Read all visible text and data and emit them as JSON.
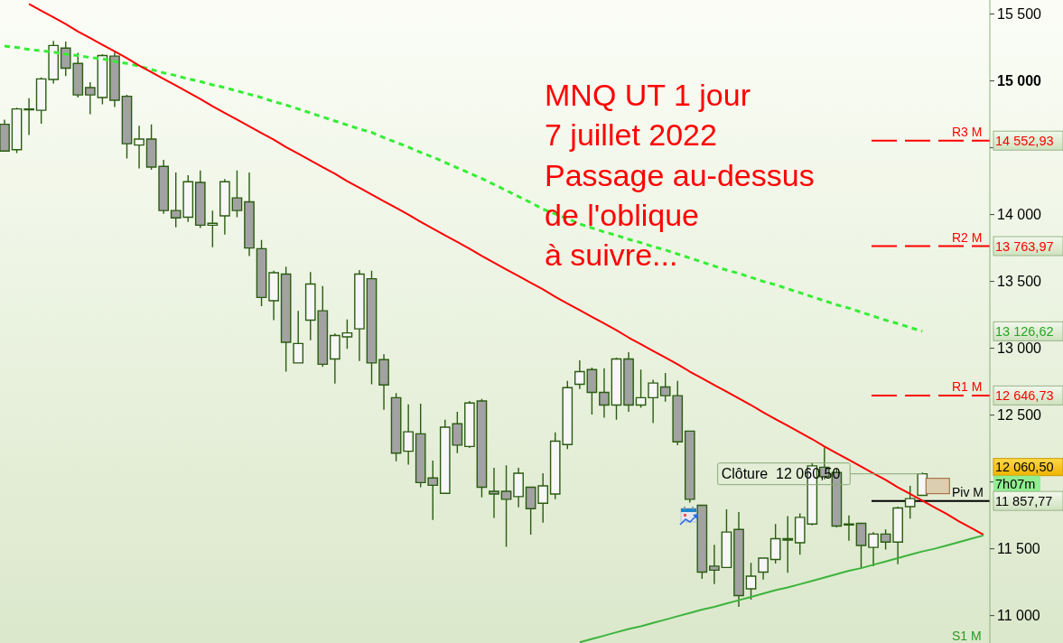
{
  "chart_data": {
    "type": "candlestick",
    "title": "MNQ UT 1 jour\n7 juillet 2022\nPassage au-dessus\nde l'oblique\nà suivre...",
    "categories": [
      null,
      null,
      null,
      null,
      null,
      null,
      null,
      null,
      null,
      null,
      null,
      null,
      null,
      null,
      null,
      null,
      null,
      null,
      null,
      null,
      null,
      null,
      null,
      null,
      null,
      null,
      null,
      null,
      null,
      null,
      null,
      null,
      null,
      null,
      null,
      null,
      null,
      null,
      null,
      null,
      null,
      null,
      null,
      null,
      null,
      null,
      null,
      null,
      null,
      null,
      null,
      null,
      null,
      null,
      null,
      null,
      null,
      null,
      null,
      null,
      null,
      null,
      null,
      null,
      null,
      null,
      null,
      null,
      null,
      null,
      null,
      null,
      null,
      null,
      null,
      null,
      null,
      null,
      null,
      null,
      null
    ],
    "ohlc": [
      [
        14675,
        14710,
        14470,
        14475
      ],
      [
        14485,
        14800,
        14460,
        14790
      ],
      [
        14790,
        14870,
        14595,
        14790
      ],
      [
        14780,
        15025,
        14680,
        15015
      ],
      [
        15010,
        15300,
        14980,
        15265
      ],
      [
        15245,
        15295,
        15035,
        15095
      ],
      [
        15130,
        15210,
        14875,
        14895
      ],
      [
        14950,
        14990,
        14750,
        14895
      ],
      [
        14875,
        15200,
        14825,
        15190
      ],
      [
        15185,
        15215,
        14805,
        14855
      ],
      [
        14885,
        14895,
        14420,
        14530
      ],
      [
        14520,
        14665,
        14345,
        14565
      ],
      [
        14565,
        14675,
        14335,
        14355
      ],
      [
        14360,
        14410,
        14005,
        14030
      ],
      [
        14030,
        14315,
        13905,
        13975
      ],
      [
        13980,
        14295,
        13945,
        14245
      ],
      [
        14240,
        14330,
        13900,
        13920
      ],
      [
        13920,
        14030,
        13755,
        13935
      ],
      [
        13990,
        14265,
        13850,
        14245
      ],
      [
        14125,
        14330,
        13980,
        14030
      ],
      [
        14095,
        14315,
        13690,
        13750
      ],
      [
        13745,
        13810,
        13315,
        13380
      ],
      [
        13355,
        13580,
        13210,
        13565
      ],
      [
        13555,
        13610,
        12825,
        13045
      ],
      [
        12890,
        13280,
        12890,
        13035
      ],
      [
        13210,
        13570,
        13060,
        13480
      ],
      [
        13280,
        13465,
        12860,
        12880
      ],
      [
        12920,
        13110,
        12735,
        13095
      ],
      [
        13085,
        13215,
        12995,
        13115
      ],
      [
        13145,
        13585,
        12905,
        13555
      ],
      [
        13520,
        13580,
        12730,
        12890
      ],
      [
        12915,
        12955,
        12540,
        12725
      ],
      [
        12630,
        12665,
        12155,
        12215
      ],
      [
        12230,
        12580,
        12130,
        12375
      ],
      [
        12360,
        12585,
        11960,
        11995
      ],
      [
        12030,
        12160,
        11715,
        11975
      ],
      [
        11915,
        12465,
        11915,
        12410
      ],
      [
        12435,
        12525,
        12215,
        12275
      ],
      [
        12265,
        12605,
        12255,
        12590
      ],
      [
        12605,
        12620,
        11885,
        11960
      ],
      [
        11930,
        12105,
        11730,
        11910
      ],
      [
        11930,
        12125,
        11515,
        11870
      ],
      [
        11890,
        12105,
        11810,
        12065
      ],
      [
        11960,
        11960,
        11605,
        11800
      ],
      [
        11840,
        12065,
        11695,
        11970
      ],
      [
        11910,
        12370,
        11870,
        12305
      ],
      [
        12280,
        12755,
        12245,
        12705
      ],
      [
        12730,
        12910,
        12695,
        12825
      ],
      [
        12840,
        12855,
        12505,
        12670
      ],
      [
        12670,
        12850,
        12480,
        12575
      ],
      [
        12575,
        12930,
        12465,
        12920
      ],
      [
        12920,
        12970,
        12525,
        12575
      ],
      [
        12575,
        12840,
        12555,
        12630
      ],
      [
        12630,
        12765,
        12440,
        12740
      ],
      [
        12710,
        12815,
        12600,
        12645
      ],
      [
        12645,
        12755,
        12275,
        12300
      ],
      [
        12380,
        12380,
        11845,
        11870
      ],
      [
        11825,
        11825,
        11275,
        11325
      ],
      [
        11370,
        11530,
        11235,
        11340
      ],
      [
        11360,
        11795,
        11355,
        11625
      ],
      [
        11645,
        11775,
        11065,
        11150
      ],
      [
        11200,
        11395,
        11120,
        11295
      ],
      [
        11325,
        11435,
        11270,
        11430
      ],
      [
        11420,
        11685,
        11390,
        11575
      ],
      [
        11575,
        11745,
        11320,
        11565
      ],
      [
        11545,
        11765,
        11455,
        11735
      ],
      [
        11685,
        12140,
        11675,
        12120
      ],
      [
        12110,
        12260,
        12020,
        12040
      ],
      [
        12070,
        12100,
        11660,
        11670
      ],
      [
        11685,
        11750,
        11560,
        11685
      ],
      [
        11690,
        11690,
        11350,
        11525
      ],
      [
        11510,
        11625,
        11370,
        11610
      ],
      [
        11610,
        11645,
        11495,
        11550
      ],
      [
        11550,
        11815,
        11385,
        11805
      ],
      [
        11815,
        11970,
        11725,
        11875
      ],
      [
        11900,
        12070,
        11895,
        12060.5
      ],
      null,
      null,
      null,
      null,
      null
    ],
    "series": [
      {
        "type": "line",
        "color": "#33ee33",
        "line_style": "dotted",
        "values": [
          15260,
          15250,
          15235,
          15225,
          15215,
          15200,
          15190,
          15175,
          15165,
          15145,
          15130,
          15110,
          15085,
          15060,
          15040,
          15015,
          14995,
          14970,
          14950,
          14925,
          14900,
          14875,
          14845,
          14820,
          14790,
          14760,
          14730,
          14700,
          14670,
          14640,
          14615,
          14575,
          14540,
          14505,
          14465,
          14430,
          14390,
          14350,
          14310,
          14270,
          14225,
          14180,
          14135,
          14090,
          14040,
          14005,
          13970,
          13930,
          13900,
          13870,
          13845,
          13815,
          13790,
          13760,
          13735,
          13705,
          13675,
          13645,
          13615,
          13585,
          13560,
          13530,
          13500,
          13475,
          13445,
          13415,
          13385,
          13355,
          13325,
          13300,
          13270,
          13240,
          13210,
          13185,
          13155,
          13126.62,
          null,
          null,
          null,
          null,
          null
        ]
      },
      {
        "type": "line",
        "color": "#ff0000",
        "values": [
          null,
          null,
          15575,
          15525,
          15475,
          15425,
          15370,
          15320,
          15270,
          15220,
          15170,
          15115,
          15065,
          15015,
          14965,
          14915,
          14865,
          14810,
          14760,
          14710,
          14660,
          14610,
          14560,
          14505,
          14455,
          14405,
          14355,
          14305,
          14250,
          14200,
          14150,
          14100,
          14050,
          14000,
          13945,
          13895,
          13845,
          13795,
          13745,
          13690,
          13640,
          13590,
          13540,
          13490,
          13440,
          13385,
          13335,
          13285,
          13235,
          13185,
          13135,
          13080,
          13030,
          12980,
          12930,
          12880,
          12825,
          12775,
          12725,
          12675,
          12625,
          12575,
          12520,
          12470,
          12420,
          12370,
          12320,
          12265,
          12215,
          12165,
          12115,
          12065,
          12015,
          11960,
          11910,
          11860,
          11810,
          11760,
          11705,
          11655,
          11605
        ]
      },
      {
        "type": "line",
        "color": "#3cb43c",
        "values": [
          null,
          null,
          null,
          null,
          null,
          null,
          null,
          null,
          null,
          null,
          null,
          null,
          null,
          null,
          null,
          null,
          null,
          null,
          null,
          null,
          null,
          null,
          null,
          null,
          null,
          null,
          null,
          null,
          null,
          null,
          null,
          null,
          null,
          null,
          null,
          null,
          null,
          null,
          null,
          null,
          null,
          null,
          null,
          null,
          null,
          null,
          null,
          10800,
          10825,
          10850,
          10875,
          10900,
          10920,
          10945,
          10970,
          10995,
          11020,
          11045,
          11065,
          11090,
          11115,
          11140,
          11165,
          11190,
          11210,
          11235,
          11260,
          11285,
          11310,
          11335,
          11355,
          11380,
          11405,
          11430,
          11455,
          11480,
          11500,
          11525,
          11550,
          11575,
          11600
        ]
      }
    ],
    "ylim": [
      10795,
      15605
    ],
    "yticks": [
      {
        "value": 11000,
        "label": "11 000"
      },
      {
        "value": 11500,
        "label": "11 500"
      },
      {
        "value": 12000,
        "label": null
      },
      {
        "value": 12500,
        "label": "12 500"
      },
      {
        "value": 13000,
        "label": "13 000"
      },
      {
        "value": 13500,
        "label": "13 500"
      },
      {
        "value": 14000,
        "label": "14 000"
      },
      {
        "value": 14500,
        "label": null
      },
      {
        "value": 15000,
        "label": "15 000"
      },
      {
        "value": 15500,
        "label": "15 500"
      }
    ],
    "tick_labels": "y",
    "ref_lines": [
      {
        "axis": "y",
        "value": 14552.93,
        "label": "R3 M",
        "color": "#ff0000",
        "line_style": "dashed"
      },
      {
        "axis": "y",
        "value": 13763.97,
        "label": "R2 M",
        "color": "#ff0000",
        "line_style": "dashed"
      },
      {
        "axis": "y",
        "value": 12646.73,
        "label": "R1 M",
        "color": "#ff0000",
        "line_style": "dashed"
      },
      {
        "axis": "y",
        "value": 11857.77,
        "label": "Piv M",
        "color": "#000000",
        "line_style": "solid"
      }
    ],
    "annotations": [
      "14 552,93",
      "13 763,97",
      "13 126,62",
      "12 646,73",
      "12 060,50",
      "7h07m",
      "11 857,77",
      "Clôture  12 060,50",
      "S1 M"
    ]
  }
}
